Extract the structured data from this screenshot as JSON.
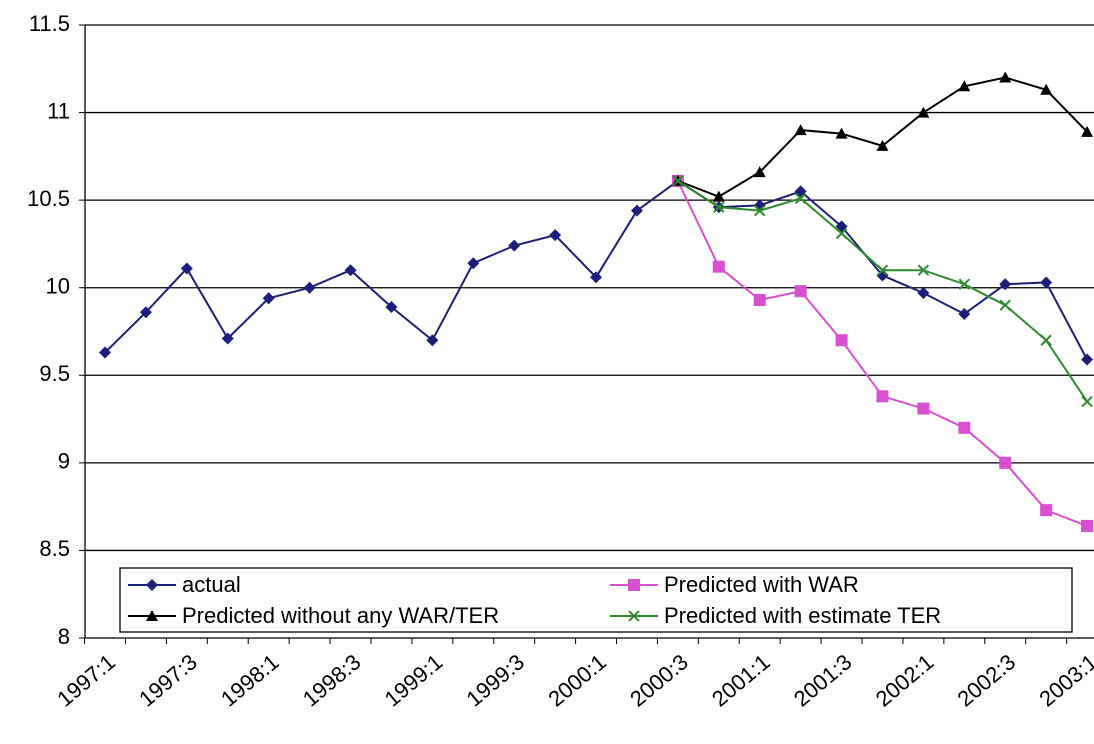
{
  "chart_data": {
    "type": "line",
    "categories": [
      "1997:1",
      null,
      "1997:3",
      null,
      "1998:1",
      null,
      "1998:3",
      null,
      "1999:1",
      null,
      "1999:3",
      null,
      "2000:1",
      null,
      "2000:3",
      null,
      "2001:1",
      null,
      "2001:3",
      null,
      "2002:1",
      null,
      "2002:3",
      null,
      "2003:1"
    ],
    "series": [
      {
        "name": "actual",
        "color": "#1c1f7a",
        "marker": "diamond",
        "values": [
          9.63,
          9.86,
          10.11,
          9.71,
          9.94,
          10.0,
          10.1,
          9.89,
          9.7,
          10.14,
          10.24,
          10.3,
          10.06,
          10.44,
          10.61,
          10.46,
          10.47,
          10.55,
          10.35,
          10.07,
          9.97,
          9.85,
          10.02,
          10.03,
          9.59
        ]
      },
      {
        "name": "Predicted with WAR",
        "color": "#d84fcf",
        "marker": "square",
        "values": [
          null,
          null,
          null,
          null,
          null,
          null,
          null,
          null,
          null,
          null,
          null,
          null,
          null,
          null,
          10.61,
          10.12,
          9.93,
          9.98,
          9.7,
          9.38,
          9.31,
          9.2,
          9.0,
          8.73,
          8.64
        ]
      },
      {
        "name": "Predicted without any WAR/TER",
        "color": "#000000",
        "marker": "triangle",
        "values": [
          null,
          null,
          null,
          null,
          null,
          null,
          null,
          null,
          null,
          null,
          null,
          null,
          null,
          null,
          10.61,
          10.52,
          10.66,
          10.9,
          10.88,
          10.81,
          11.0,
          11.15,
          11.2,
          11.13,
          10.89
        ]
      },
      {
        "name": "Predicted with estimate TER",
        "color": "#2e8b2e",
        "marker": "x",
        "values": [
          null,
          null,
          null,
          null,
          null,
          null,
          null,
          null,
          null,
          null,
          null,
          null,
          null,
          null,
          10.61,
          10.46,
          10.44,
          10.51,
          10.31,
          10.1,
          10.1,
          10.02,
          9.9,
          9.7,
          9.35
        ]
      }
    ],
    "ylim": [
      8,
      11.5
    ],
    "yticks": [
      8,
      8.5,
      9,
      9.5,
      10,
      10.5,
      11,
      11.5
    ],
    "grid": true,
    "legend": "bottom"
  }
}
